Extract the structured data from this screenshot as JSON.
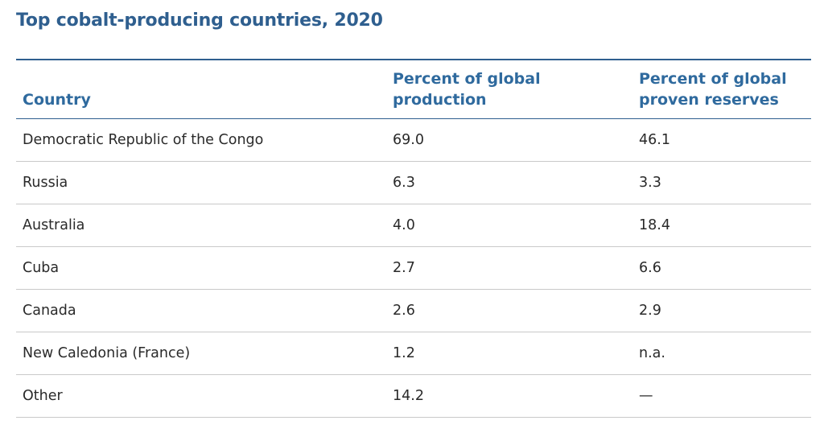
{
  "title": "Top cobalt-producing countries, 2020",
  "table": {
    "headers": [
      {
        "lines": [
          "Country"
        ]
      },
      {
        "lines": [
          "Percent of global",
          "production"
        ]
      },
      {
        "lines": [
          "Percent of global",
          "proven reserves"
        ]
      }
    ],
    "rows": [
      {
        "country": "Democratic Republic of the Congo",
        "production": "69.0",
        "reserves": "46.1"
      },
      {
        "country": "Russia",
        "production": "6.3",
        "reserves": "3.3"
      },
      {
        "country": "Australia",
        "production": "4.0",
        "reserves": "18.4"
      },
      {
        "country": "Cuba",
        "production": "2.7",
        "reserves": "6.6"
      },
      {
        "country": "Canada",
        "production": "2.6",
        "reserves": "2.9"
      },
      {
        "country": "New Caledonia (France)",
        "production": "1.2",
        "reserves": "n.a."
      },
      {
        "country": "Other",
        "production": "14.2",
        "reserves": "—"
      }
    ]
  },
  "colors": {
    "title": "#2f5f8f",
    "header_text": "#2f6a9e",
    "rule": "#2f5f8f",
    "row_divider": "#c9c9c9"
  }
}
